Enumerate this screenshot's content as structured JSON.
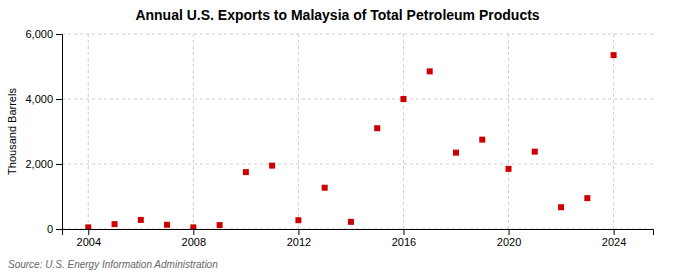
{
  "chart_data": {
    "type": "scatter",
    "title": "Annual U.S. Exports to Malaysia of Total Petroleum Products",
    "ylabel": "Thousand Barrels",
    "annotations": [
      "Source: U.S. Energy Information Administration"
    ],
    "x": [
      2004,
      2005,
      2006,
      2007,
      2008,
      2009,
      2010,
      2011,
      2012,
      2013,
      2014,
      2015,
      2016,
      2017,
      2018,
      2019,
      2020,
      2021,
      2022,
      2023,
      2024
    ],
    "values": [
      50,
      150,
      280,
      130,
      50,
      120,
      1750,
      1950,
      270,
      1270,
      220,
      3100,
      4000,
      4850,
      2350,
      2750,
      1850,
      2380,
      670,
      950,
      5350
    ],
    "color": "#cc0000",
    "marker": "square",
    "xlim": [
      2003.0,
      2025.5
    ],
    "xticks": [
      2004,
      2008,
      2012,
      2016,
      2020,
      2024
    ],
    "ylim": [
      0,
      6000
    ],
    "yticks": [
      0,
      {
        "value": 2000,
        "label": "2,000"
      },
      {
        "value": 4000,
        "label": "4,000"
      },
      {
        "value": 6000,
        "label": "6,000"
      }
    ],
    "grid": true
  }
}
